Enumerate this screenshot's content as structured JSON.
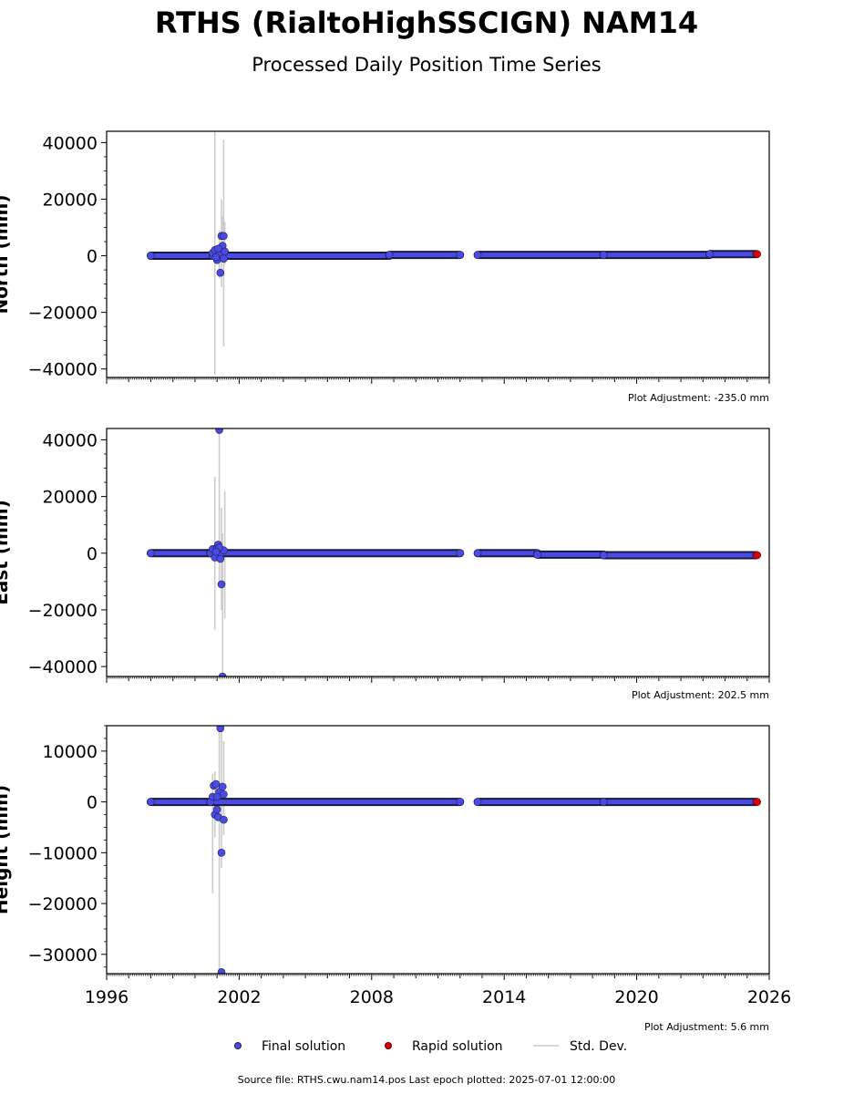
{
  "title": "RTHS (RialtoHighSSCIGN) NAM14",
  "subtitle": "Processed Daily Position Time Series",
  "colors": {
    "final": "#4a4ae8",
    "rapid": "#e00000",
    "stddev": "#cccccc",
    "marker_edge": "#222244"
  },
  "legend": {
    "final": "Final solution",
    "rapid": "Rapid solution",
    "stddev": "Std. Dev."
  },
  "source": "Source file: RTHS.cwu.nam14.pos  Last epoch plotted: 2025-07-01 12:00:00",
  "chart_data": [
    {
      "type": "scatter",
      "component": "north",
      "ylabel": "North (mm)",
      "adjustment": "Plot Adjustment: -235.0 mm",
      "xlim": [
        1996,
        2026
      ],
      "ylim": [
        -43000,
        44000
      ],
      "yticks": [
        -40000,
        -20000,
        0,
        20000,
        40000
      ],
      "ytick_labels": [
        "−40000",
        "−20000",
        "0",
        "20000",
        "40000"
      ],
      "segments": [
        {
          "x": [
            1998.0,
            2000.8
          ],
          "y": [
            0,
            0
          ]
        },
        {
          "x": [
            2000.8,
            2008.8
          ],
          "y": [
            0,
            0
          ]
        },
        {
          "x": [
            2008.8,
            2012.0
          ],
          "y": [
            300,
            300
          ]
        },
        {
          "x": [
            2012.8,
            2018.5
          ],
          "y": [
            300,
            300
          ]
        },
        {
          "x": [
            2018.5,
            2023.3
          ],
          "y": [
            300,
            300
          ]
        },
        {
          "x": [
            2023.3,
            2025.4
          ],
          "y": [
            600,
            600
          ]
        }
      ],
      "points": [
        {
          "x": 2000.8,
          "y": 1000
        },
        {
          "x": 2000.9,
          "y": 2000
        },
        {
          "x": 2001.0,
          "y": -1500
        },
        {
          "x": 2001.1,
          "y": 800
        },
        {
          "x": 2001.15,
          "y": -6000
        },
        {
          "x": 2001.2,
          "y": 7000
        },
        {
          "x": 2001.25,
          "y": 3500
        },
        {
          "x": 2001.3,
          "y": 7000
        },
        {
          "x": 2001.3,
          "y": -1000
        },
        {
          "x": 2001.35,
          "y": 1500
        },
        {
          "x": 2000.95,
          "y": -500
        },
        {
          "x": 2001.05,
          "y": 2500
        }
      ],
      "errorbars": [
        {
          "x": 2000.9,
          "low": -42000,
          "high": 44000
        },
        {
          "x": 2001.1,
          "low": -8000,
          "high": 9000
        },
        {
          "x": 2001.2,
          "low": -11000,
          "high": 20000
        },
        {
          "x": 2001.25,
          "low": -2000,
          "high": 14000
        },
        {
          "x": 2001.3,
          "low": -32000,
          "high": 41000
        },
        {
          "x": 2001.35,
          "low": -3000,
          "high": 12000
        }
      ],
      "rapid": [
        {
          "x": 2025.45,
          "y": 600
        }
      ]
    },
    {
      "type": "scatter",
      "component": "east",
      "ylabel": "East (mm)",
      "adjustment": "Plot Adjustment: 202.5 mm",
      "xlim": [
        1996,
        2026
      ],
      "ylim": [
        -43500,
        44000
      ],
      "yticks": [
        -40000,
        -20000,
        0,
        20000,
        40000
      ],
      "ytick_labels": [
        "−40000",
        "−20000",
        "0",
        "20000",
        "40000"
      ],
      "segments": [
        {
          "x": [
            1998.0,
            2000.7
          ],
          "y": [
            0,
            0
          ]
        },
        {
          "x": [
            2000.7,
            2012.0
          ],
          "y": [
            0,
            0
          ]
        },
        {
          "x": [
            2012.8,
            2015.5
          ],
          "y": [
            0,
            0
          ]
        },
        {
          "x": [
            2015.5,
            2018.5
          ],
          "y": [
            -500,
            -500
          ]
        },
        {
          "x": [
            2018.5,
            2025.4
          ],
          "y": [
            -700,
            -700
          ]
        }
      ],
      "points": [
        {
          "x": 2000.8,
          "y": 1500
        },
        {
          "x": 2000.9,
          "y": -1500
        },
        {
          "x": 2001.0,
          "y": 2000
        },
        {
          "x": 2001.1,
          "y": 43500
        },
        {
          "x": 2001.15,
          "y": -2000
        },
        {
          "x": 2001.2,
          "y": -11000
        },
        {
          "x": 2001.25,
          "y": -43500
        },
        {
          "x": 2001.3,
          "y": 1000
        },
        {
          "x": 2001.05,
          "y": 3000
        },
        {
          "x": 2001.1,
          "y": 2000
        },
        {
          "x": 2000.95,
          "y": 500
        }
      ],
      "errorbars": [
        {
          "x": 2000.9,
          "low": -27000,
          "high": 27000
        },
        {
          "x": 2001.1,
          "low": -10000,
          "high": 44000
        },
        {
          "x": 2001.2,
          "low": -20000,
          "high": 16000
        },
        {
          "x": 2001.25,
          "low": -43500,
          "high": 7000
        },
        {
          "x": 2001.35,
          "low": -23000,
          "high": 22000
        }
      ],
      "rapid": [
        {
          "x": 2025.45,
          "y": -700
        }
      ]
    },
    {
      "type": "scatter",
      "component": "up",
      "ylabel": "Height (mm)",
      "adjustment": "Plot Adjustment: 5.6 mm",
      "xlim": [
        1996,
        2026
      ],
      "ylim": [
        -33800,
        15000
      ],
      "yticks": [
        -30000,
        -20000,
        -10000,
        0,
        10000
      ],
      "ytick_labels": [
        "−30000",
        "−20000",
        "−10000",
        "0",
        "10000"
      ],
      "xticks": [
        1996,
        2002,
        2008,
        2014,
        2020,
        2026
      ],
      "xtick_labels": [
        "1996",
        "2002",
        "2008",
        "2014",
        "2020",
        "2026"
      ],
      "segments": [
        {
          "x": [
            1998.0,
            2000.7
          ],
          "y": [
            0,
            0
          ]
        },
        {
          "x": [
            2000.7,
            2012.0
          ],
          "y": [
            0,
            0
          ]
        },
        {
          "x": [
            2012.8,
            2018.5
          ],
          "y": [
            0,
            0
          ]
        },
        {
          "x": [
            2018.5,
            2025.4
          ],
          "y": [
            0,
            0
          ]
        }
      ],
      "points": [
        {
          "x": 2000.8,
          "y": 1000
        },
        {
          "x": 2000.85,
          "y": 3200
        },
        {
          "x": 2000.9,
          "y": -2500
        },
        {
          "x": 2000.95,
          "y": 3500
        },
        {
          "x": 2001.0,
          "y": -1500
        },
        {
          "x": 2001.05,
          "y": -3000
        },
        {
          "x": 2001.1,
          "y": 2000
        },
        {
          "x": 2001.15,
          "y": 14500
        },
        {
          "x": 2001.2,
          "y": -10000
        },
        {
          "x": 2001.25,
          "y": 3000
        },
        {
          "x": 2001.3,
          "y": -3500
        },
        {
          "x": 2001.2,
          "y": -33500
        },
        {
          "x": 2001.0,
          "y": 1000
        },
        {
          "x": 2001.3,
          "y": 1500
        }
      ],
      "errorbars": [
        {
          "x": 2000.8,
          "low": -18000,
          "high": 5500
        },
        {
          "x": 2000.9,
          "low": -7000,
          "high": 6000
        },
        {
          "x": 2001.1,
          "low": -33800,
          "high": 15000
        },
        {
          "x": 2001.2,
          "low": -13000,
          "high": 15000
        },
        {
          "x": 2001.3,
          "low": -6500,
          "high": 12000
        }
      ],
      "rapid": [
        {
          "x": 2025.45,
          "y": 0
        }
      ]
    }
  ]
}
